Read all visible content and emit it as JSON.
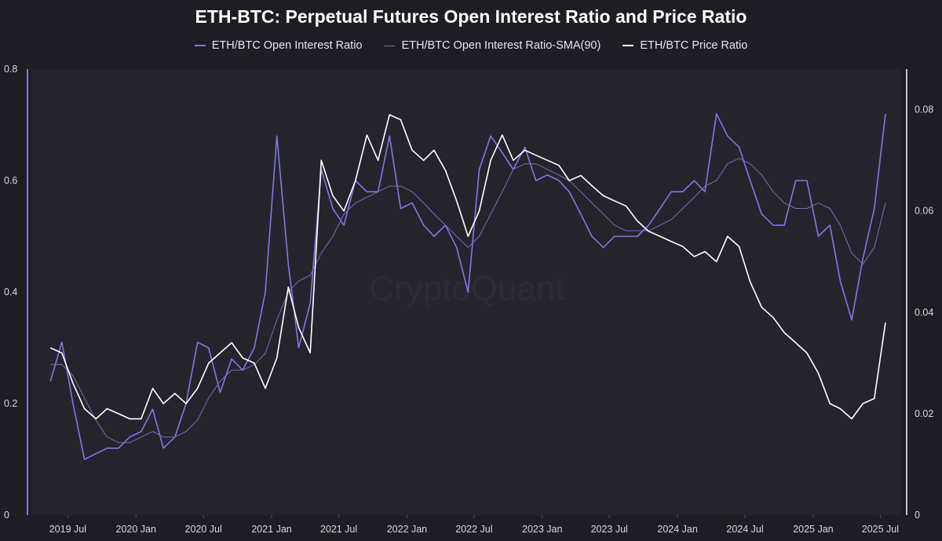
{
  "chart_data": {
    "type": "line",
    "title": "ETH-BTC: Perpetual Futures Open Interest Ratio and Price Ratio",
    "watermark": "CryptoQuant",
    "legend_position": "top-center",
    "grid": false,
    "x_tick_labels": [
      "2019 Jul",
      "2020 Jan",
      "2020 Jul",
      "2021 Jan",
      "2021 Jul",
      "2022 Jan",
      "2022 Jul",
      "2023 Jan",
      "2023 Jul",
      "2024 Jan",
      "2024 Jul",
      "2025 Jan",
      "2025 Jul"
    ],
    "y_left": {
      "ylim": [
        0,
        0.8
      ],
      "ticks": [
        "0",
        "0.2",
        "0.4",
        "0.6",
        "0.8"
      ]
    },
    "y_right": {
      "ylim": [
        0,
        0.088
      ],
      "ticks": [
        "0",
        "0.02",
        "0.04",
        "0.06",
        "0.08"
      ]
    },
    "colors": {
      "oi": "#7d78e6",
      "sma": "#7470b8",
      "price": "#ffffff",
      "background": "#1e1d24",
      "left_axis": "#7d78e6",
      "right_axis": "#ffffff"
    },
    "series": [
      {
        "name": "ETH/BTC Open Interest Ratio",
        "axis": "left",
        "x": [
          "2019-05",
          "2019-06",
          "2019-07",
          "2019-08",
          "2019-09",
          "2019-10",
          "2019-11",
          "2019-12",
          "2020-01",
          "2020-02",
          "2020-03",
          "2020-04",
          "2020-05",
          "2020-06",
          "2020-07",
          "2020-08",
          "2020-09",
          "2020-10",
          "2020-11",
          "2020-12",
          "2021-01",
          "2021-02",
          "2021-03",
          "2021-04",
          "2021-05",
          "2021-06",
          "2021-07",
          "2021-08",
          "2021-09",
          "2021-10",
          "2021-11",
          "2021-12",
          "2022-01",
          "2022-02",
          "2022-03",
          "2022-04",
          "2022-05",
          "2022-06",
          "2022-07",
          "2022-08",
          "2022-09",
          "2022-10",
          "2022-11",
          "2022-12",
          "2023-01",
          "2023-02",
          "2023-03",
          "2023-04",
          "2023-05",
          "2023-06",
          "2023-07",
          "2023-08",
          "2023-09",
          "2023-10",
          "2023-11",
          "2023-12",
          "2024-01",
          "2024-02",
          "2024-03",
          "2024-04",
          "2024-05",
          "2024-06",
          "2024-07",
          "2024-08",
          "2024-09",
          "2024-10",
          "2024-11",
          "2024-12",
          "2025-01",
          "2025-02",
          "2025-03",
          "2025-04",
          "2025-05",
          "2025-06",
          "2025-07"
        ],
        "values": [
          0.24,
          0.31,
          0.2,
          0.1,
          0.11,
          0.12,
          0.12,
          0.14,
          0.15,
          0.19,
          0.12,
          0.14,
          0.2,
          0.31,
          0.3,
          0.22,
          0.28,
          0.26,
          0.3,
          0.4,
          0.68,
          0.45,
          0.3,
          0.38,
          0.62,
          0.55,
          0.52,
          0.6,
          0.58,
          0.58,
          0.68,
          0.55,
          0.56,
          0.52,
          0.5,
          0.52,
          0.48,
          0.4,
          0.62,
          0.68,
          0.65,
          0.62,
          0.66,
          0.6,
          0.61,
          0.6,
          0.58,
          0.54,
          0.5,
          0.48,
          0.5,
          0.5,
          0.5,
          0.52,
          0.55,
          0.58,
          0.58,
          0.6,
          0.58,
          0.72,
          0.68,
          0.66,
          0.6,
          0.54,
          0.52,
          0.52,
          0.6,
          0.6,
          0.5,
          0.52,
          0.42,
          0.35,
          0.46,
          0.55,
          0.72
        ]
      },
      {
        "name": "ETH/BTC Open Interest Ratio-SMA(90)",
        "axis": "left",
        "x": [
          "2019-05",
          "2019-06",
          "2019-07",
          "2019-08",
          "2019-09",
          "2019-10",
          "2019-11",
          "2019-12",
          "2020-01",
          "2020-02",
          "2020-03",
          "2020-04",
          "2020-05",
          "2020-06",
          "2020-07",
          "2020-08",
          "2020-09",
          "2020-10",
          "2020-11",
          "2020-12",
          "2021-01",
          "2021-02",
          "2021-03",
          "2021-04",
          "2021-05",
          "2021-06",
          "2021-07",
          "2021-08",
          "2021-09",
          "2021-10",
          "2021-11",
          "2021-12",
          "2022-01",
          "2022-02",
          "2022-03",
          "2022-04",
          "2022-05",
          "2022-06",
          "2022-07",
          "2022-08",
          "2022-09",
          "2022-10",
          "2022-11",
          "2022-12",
          "2023-01",
          "2023-02",
          "2023-03",
          "2023-04",
          "2023-05",
          "2023-06",
          "2023-07",
          "2023-08",
          "2023-09",
          "2023-10",
          "2023-11",
          "2023-12",
          "2024-01",
          "2024-02",
          "2024-03",
          "2024-04",
          "2024-05",
          "2024-06",
          "2024-07",
          "2024-08",
          "2024-09",
          "2024-10",
          "2024-11",
          "2024-12",
          "2025-01",
          "2025-02",
          "2025-03",
          "2025-04",
          "2025-05",
          "2025-06",
          "2025-07"
        ],
        "values": [
          0.27,
          0.27,
          0.25,
          0.21,
          0.17,
          0.14,
          0.13,
          0.13,
          0.14,
          0.15,
          0.14,
          0.14,
          0.15,
          0.17,
          0.21,
          0.24,
          0.26,
          0.26,
          0.27,
          0.29,
          0.35,
          0.4,
          0.42,
          0.43,
          0.47,
          0.5,
          0.54,
          0.56,
          0.57,
          0.58,
          0.59,
          0.59,
          0.58,
          0.56,
          0.54,
          0.52,
          0.5,
          0.48,
          0.5,
          0.54,
          0.58,
          0.62,
          0.63,
          0.63,
          0.62,
          0.61,
          0.6,
          0.58,
          0.56,
          0.54,
          0.52,
          0.51,
          0.51,
          0.51,
          0.52,
          0.53,
          0.55,
          0.57,
          0.59,
          0.6,
          0.63,
          0.64,
          0.63,
          0.61,
          0.58,
          0.56,
          0.55,
          0.55,
          0.56,
          0.55,
          0.52,
          0.47,
          0.45,
          0.48,
          0.56
        ]
      },
      {
        "name": "ETH/BTC Price Ratio",
        "axis": "right",
        "x": [
          "2019-05",
          "2019-06",
          "2019-07",
          "2019-08",
          "2019-09",
          "2019-10",
          "2019-11",
          "2019-12",
          "2020-01",
          "2020-02",
          "2020-03",
          "2020-04",
          "2020-05",
          "2020-06",
          "2020-07",
          "2020-08",
          "2020-09",
          "2020-10",
          "2020-11",
          "2020-12",
          "2021-01",
          "2021-02",
          "2021-03",
          "2021-04",
          "2021-05",
          "2021-06",
          "2021-07",
          "2021-08",
          "2021-09",
          "2021-10",
          "2021-11",
          "2021-12",
          "2022-01",
          "2022-02",
          "2022-03",
          "2022-04",
          "2022-05",
          "2022-06",
          "2022-07",
          "2022-08",
          "2022-09",
          "2022-10",
          "2022-11",
          "2022-12",
          "2023-01",
          "2023-02",
          "2023-03",
          "2023-04",
          "2023-05",
          "2023-06",
          "2023-07",
          "2023-08",
          "2023-09",
          "2023-10",
          "2023-11",
          "2023-12",
          "2024-01",
          "2024-02",
          "2024-03",
          "2024-04",
          "2024-05",
          "2024-06",
          "2024-07",
          "2024-08",
          "2024-09",
          "2024-10",
          "2024-11",
          "2024-12",
          "2025-01",
          "2025-02",
          "2025-03",
          "2025-04",
          "2025-05",
          "2025-06",
          "2025-07"
        ],
        "values": [
          0.033,
          0.032,
          0.026,
          0.021,
          0.019,
          0.021,
          0.02,
          0.019,
          0.019,
          0.025,
          0.022,
          0.024,
          0.022,
          0.025,
          0.03,
          0.032,
          0.034,
          0.031,
          0.03,
          0.025,
          0.031,
          0.045,
          0.037,
          0.032,
          0.07,
          0.063,
          0.06,
          0.066,
          0.075,
          0.07,
          0.079,
          0.078,
          0.072,
          0.07,
          0.072,
          0.068,
          0.062,
          0.055,
          0.06,
          0.07,
          0.075,
          0.07,
          0.072,
          0.071,
          0.07,
          0.069,
          0.066,
          0.067,
          0.065,
          0.063,
          0.062,
          0.061,
          0.058,
          0.056,
          0.055,
          0.054,
          0.053,
          0.051,
          0.052,
          0.05,
          0.055,
          0.053,
          0.046,
          0.041,
          0.039,
          0.036,
          0.034,
          0.032,
          0.028,
          0.022,
          0.021,
          0.019,
          0.022,
          0.023,
          0.038
        ]
      }
    ]
  }
}
